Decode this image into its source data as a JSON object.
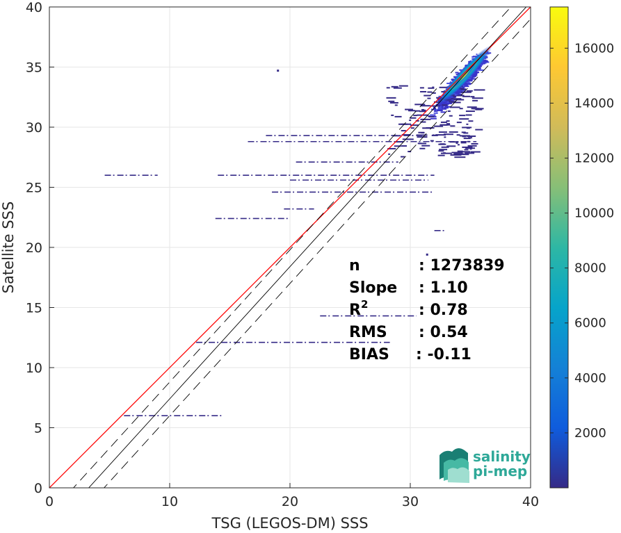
{
  "chart_data": {
    "type": "heatmap",
    "xlabel": "TSG (LEGOS-DM) SSS",
    "ylabel": "Satellite SSS",
    "xlim": [
      0,
      40
    ],
    "ylim": [
      0,
      40
    ],
    "xticks": [
      0,
      10,
      20,
      30,
      40
    ],
    "yticks": [
      0,
      5,
      10,
      15,
      20,
      25,
      30,
      35,
      40
    ],
    "grid": true,
    "colorbar": {
      "colormap": "parula",
      "range": [
        0,
        17500
      ],
      "ticks": [
        2000,
        4000,
        6000,
        8000,
        10000,
        12000,
        14000,
        16000
      ],
      "colors": [
        "#352a87",
        "#0f5cdd",
        "#1481d6",
        "#06a4ca",
        "#2eb7a4",
        "#87bf77",
        "#d1bb59",
        "#fec832",
        "#f9fb0e"
      ]
    },
    "reference_lines": [
      {
        "name": "1:1",
        "slope": 1.0,
        "intercept": 0,
        "color": "#ff0000",
        "style": "solid"
      },
      {
        "name": "regression",
        "slope": 1.1,
        "intercept": -3.6,
        "color": "#000000",
        "style": "solid"
      },
      {
        "name": "regression +1",
        "slope": 1.1,
        "intercept": -2.2,
        "color": "#000000",
        "style": "dashed"
      },
      {
        "name": "regression -1",
        "slope": 1.1,
        "intercept": -5.0,
        "color": "#000000",
        "style": "dashed"
      }
    ],
    "density_core": {
      "x_center": 34.5,
      "y_center": 34.3,
      "peak_count": 17500,
      "color": "#f9fb0e"
    },
    "stats": [
      {
        "label": "n",
        "value": ": 1273839"
      },
      {
        "label": "Slope",
        "value": ": 1.10"
      },
      {
        "label": "R",
        "sup": "2",
        "value": ": 0.78"
      },
      {
        "label": "RMS",
        "value": ": 0.54"
      },
      {
        "label": "BIAS",
        "value": ": -0.11"
      }
    ],
    "horizontal_streaks": [
      {
        "y": 12.1,
        "x_from": 12.2,
        "x_to": 28.3
      },
      {
        "y": 26.0,
        "x_from": 4.6,
        "x_to": 9.0
      },
      {
        "y": 26.0,
        "x_from": 14.0,
        "x_to": 32.0
      },
      {
        "y": 25.6,
        "x_from": 20.0,
        "x_to": 31.5
      },
      {
        "y": 24.6,
        "x_from": 18.5,
        "x_to": 32.0
      },
      {
        "y": 22.4,
        "x_from": 13.8,
        "x_to": 20.0
      },
      {
        "y": 6.0,
        "x_from": 6.2,
        "x_to": 14.5
      },
      {
        "y": 14.3,
        "x_from": 22.5,
        "x_to": 30.5
      },
      {
        "y": 28.8,
        "x_from": 16.5,
        "x_to": 35.5
      },
      {
        "y": 29.3,
        "x_from": 18.0,
        "x_to": 31.0
      },
      {
        "y": 27.1,
        "x_from": 20.5,
        "x_to": 29.0
      },
      {
        "y": 23.2,
        "x_from": 19.5,
        "x_to": 22.0
      },
      {
        "y": 21.4,
        "x_from": 32.0,
        "x_to": 33.0
      }
    ],
    "outliers": [
      {
        "x": 19.0,
        "y": 34.7
      },
      {
        "x": 31.4,
        "y": 19.4
      }
    ]
  },
  "logo": {
    "line1": "salinity",
    "line2": "pi-mep",
    "color": "#2ea898"
  }
}
